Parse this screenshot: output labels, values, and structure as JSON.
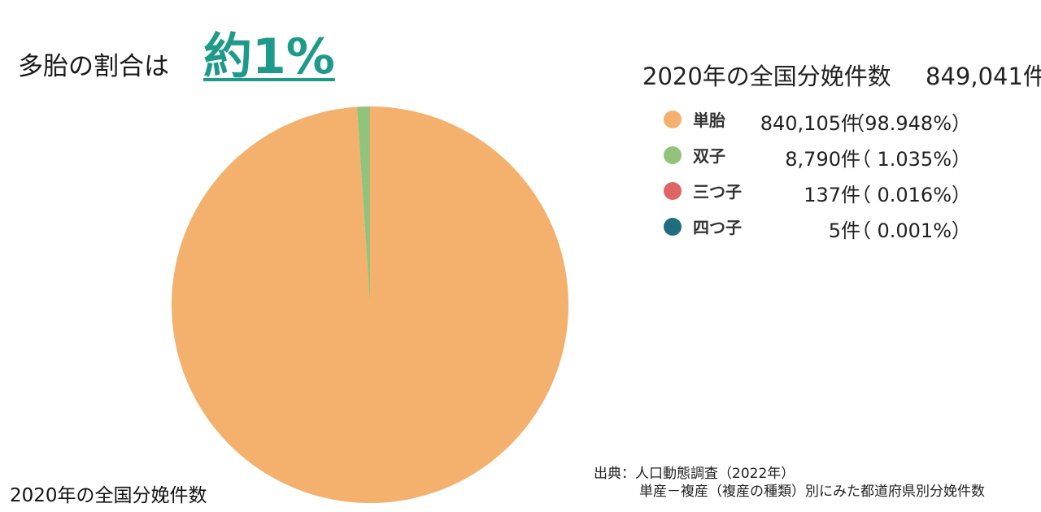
{
  "heading": {
    "text": "多胎の割合は",
    "highlight": "約1%"
  },
  "total": {
    "label": "2020年の全国分娩件数",
    "value": "849,041件"
  },
  "legend": [
    {
      "name": "単胎",
      "count": "840,105件",
      "pct": "（98.948%）",
      "color": "#f4b16d"
    },
    {
      "name": "双子",
      "count": "8,790件",
      "pct": "（  1.035%）",
      "color": "#91c47a"
    },
    {
      "name": "三つ子",
      "count": "137件",
      "pct": "（ 0.016%）",
      "color": "#e06666"
    },
    {
      "name": "四つ子",
      "count": "5件",
      "pct": "（ 0.001%）",
      "color": "#1f6e80"
    }
  ],
  "chart_data": {
    "type": "pie",
    "title": "2020年の全国分娩件数",
    "categories": [
      "単胎",
      "双子",
      "三つ子",
      "四つ子"
    ],
    "values": [
      840105,
      8790,
      137,
      5
    ],
    "percentages": [
      98.948,
      1.035,
      0.016,
      0.001
    ],
    "colors": [
      "#f4b16d",
      "#91c47a",
      "#e06666",
      "#1f6e80"
    ],
    "start_angle": "top",
    "direction": "clockwise"
  },
  "bottom_label": "2020年の全国分娩件数",
  "source": {
    "line1": "出典：人口動態調査（2022年）",
    "line2": "単産－複産（複産の種類）別にみた都道府県別分娩件数"
  }
}
